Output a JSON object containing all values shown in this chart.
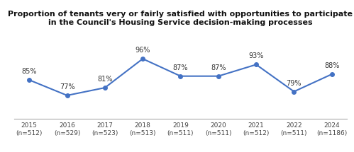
{
  "title_line1": "Proportion of tenants very or fairly satisfied with opportunities to participate",
  "title_line2": "in the Council's Housing Service decision-making processes",
  "years": [
    "2015",
    "2016",
    "2017",
    "2018",
    "2019",
    "2020",
    "2021",
    "2022",
    "2024"
  ],
  "ns": [
    "(n=512)",
    "(n=529)",
    "(n=523)",
    "(n=513)",
    "(n=511)",
    "(n=511)",
    "(n=512)",
    "(n=511)",
    "(n=1186)"
  ],
  "values": [
    85,
    77,
    81,
    96,
    87,
    87,
    93,
    79,
    88
  ],
  "line_color": "#4472C4",
  "marker": "o",
  "marker_size": 4,
  "ylim": [
    65,
    103
  ],
  "background_color": "#ffffff",
  "title_fontsize": 8.0,
  "label_fontsize": 7.0,
  "tick_fontsize": 6.5,
  "line_width": 1.5
}
